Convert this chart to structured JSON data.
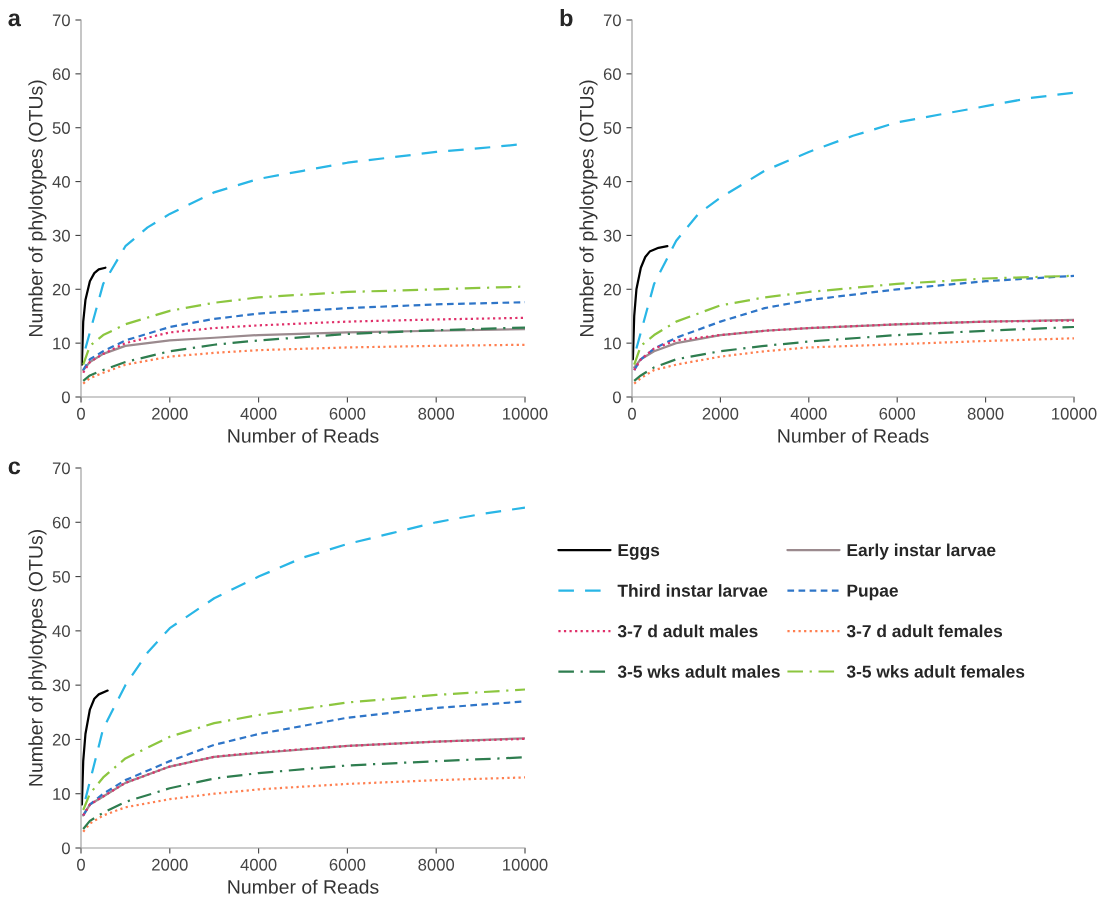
{
  "chart_data": [
    {
      "type": "line",
      "title": "a",
      "xlabel": "Number of Reads",
      "ylabel": "Number of phylotypes (OTUs)",
      "xlim": [
        0,
        10000
      ],
      "xticks": [
        0,
        2000,
        4000,
        6000,
        8000,
        10000
      ],
      "ylim": [
        0,
        70
      ],
      "yticks": [
        0,
        10,
        20,
        30,
        40,
        50,
        60,
        70
      ],
      "grid": false,
      "legend": false,
      "series": [
        {
          "color": "#000000",
          "line_style": "solid",
          "x": [
            20,
            50,
            100,
            200,
            300,
            400,
            550
          ],
          "values": [
            6,
            14,
            18,
            21.5,
            23,
            23.7,
            24
          ]
        },
        {
          "color": "#9b8a8e",
          "line_style": "solid",
          "x": [
            50,
            200,
            500,
            1000,
            2000,
            3000,
            4000,
            6000,
            8000,
            10000
          ],
          "values": [
            5,
            6.5,
            8,
            9.5,
            10.5,
            11,
            11.5,
            12,
            12.3,
            12.6
          ]
        },
        {
          "color": "#29b6e6",
          "line_style": "longdash",
          "x": [
            100,
            500,
            1000,
            1500,
            2000,
            3000,
            4000,
            5000,
            6000,
            7000,
            8000,
            9000,
            10000
          ],
          "values": [
            9,
            21,
            28,
            31.5,
            34,
            38,
            40.5,
            42,
            43.5,
            44.5,
            45.5,
            46.2,
            47
          ]
        },
        {
          "color": "#2e75c8",
          "line_style": "dashed",
          "x": [
            50,
            200,
            500,
            1000,
            2000,
            3000,
            4000,
            6000,
            8000,
            10000
          ],
          "values": [
            5,
            7,
            8.5,
            10.5,
            13,
            14.5,
            15.5,
            16.5,
            17.2,
            17.6
          ]
        },
        {
          "color": "#e0306a",
          "line_style": "dotted",
          "x": [
            50,
            200,
            500,
            1000,
            2000,
            3000,
            4000,
            6000,
            8000,
            10000
          ],
          "values": [
            4.5,
            6.5,
            8,
            10,
            12,
            12.8,
            13.3,
            14,
            14.4,
            14.7
          ]
        },
        {
          "color": "#ff7f50",
          "line_style": "dotted",
          "x": [
            50,
            200,
            500,
            1000,
            2000,
            3000,
            4000,
            6000,
            8000,
            10000
          ],
          "values": [
            2.5,
            3.5,
            4.5,
            6,
            7.5,
            8.2,
            8.7,
            9.2,
            9.5,
            9.7
          ]
        },
        {
          "color": "#2e7d4f",
          "line_style": "dashdot",
          "x": [
            50,
            200,
            500,
            1000,
            2000,
            3000,
            4000,
            6000,
            8000,
            10000
          ],
          "values": [
            3,
            4,
            5,
            6.5,
            8.5,
            9.7,
            10.5,
            11.7,
            12.4,
            12.9
          ]
        },
        {
          "color": "#8cc63f",
          "line_style": "dashdot",
          "x": [
            50,
            200,
            500,
            1000,
            2000,
            3000,
            4000,
            6000,
            8000,
            10000
          ],
          "values": [
            6,
            9.5,
            11.5,
            13.5,
            16,
            17.5,
            18.5,
            19.5,
            20,
            20.5
          ]
        }
      ]
    },
    {
      "type": "line",
      "title": "b",
      "xlabel": "Number of Reads",
      "ylabel": "Number of phylotypes (OTUs)",
      "xlim": [
        0,
        10000
      ],
      "xticks": [
        0,
        2000,
        4000,
        6000,
        8000,
        10000
      ],
      "ylim": [
        0,
        70
      ],
      "yticks": [
        0,
        10,
        20,
        30,
        40,
        50,
        60,
        70
      ],
      "grid": false,
      "legend": false,
      "series": [
        {
          "color": "#000000",
          "line_style": "solid",
          "x": [
            20,
            50,
            100,
            200,
            300,
            400,
            600,
            800
          ],
          "values": [
            7,
            15,
            20,
            24,
            26,
            27,
            27.7,
            28
          ]
        },
        {
          "color": "#9b8a8e",
          "line_style": "solid",
          "x": [
            50,
            200,
            500,
            1000,
            2000,
            3000,
            4000,
            6000,
            8000,
            10000
          ],
          "values": [
            5.5,
            7,
            8.5,
            10,
            11.5,
            12.3,
            12.8,
            13.5,
            14,
            14.3
          ]
        },
        {
          "color": "#29b6e6",
          "line_style": "longdash",
          "x": [
            100,
            500,
            1000,
            1500,
            2000,
            3000,
            4000,
            5000,
            6000,
            7000,
            8000,
            9000,
            10000
          ],
          "values": [
            9,
            21,
            29,
            34,
            37,
            42,
            45.5,
            48.5,
            51,
            52.5,
            54,
            55.5,
            56.5
          ]
        },
        {
          "color": "#2e75c8",
          "line_style": "dashed",
          "x": [
            50,
            200,
            500,
            1000,
            2000,
            3000,
            4000,
            6000,
            8000,
            10000
          ],
          "values": [
            5,
            7,
            9,
            11,
            14,
            16.5,
            18,
            20,
            21.5,
            22.5
          ]
        },
        {
          "color": "#e0306a",
          "line_style": "dotted",
          "x": [
            50,
            200,
            500,
            1000,
            2000,
            3000,
            4000,
            6000,
            8000,
            10000
          ],
          "values": [
            5,
            7,
            9,
            10.5,
            11.5,
            12.3,
            12.8,
            13.5,
            14,
            14.2
          ]
        },
        {
          "color": "#ff7f50",
          "line_style": "dotted",
          "x": [
            50,
            200,
            500,
            1000,
            2000,
            3000,
            4000,
            6000,
            8000,
            10000
          ],
          "values": [
            2.5,
            3.5,
            5,
            6,
            7.5,
            8.5,
            9.2,
            9.8,
            10.4,
            10.9
          ]
        },
        {
          "color": "#2e7d4f",
          "line_style": "dashdot",
          "x": [
            50,
            200,
            500,
            1000,
            2000,
            3000,
            4000,
            6000,
            8000,
            10000
          ],
          "values": [
            3,
            4,
            5.5,
            7,
            8.5,
            9.5,
            10.3,
            11.5,
            12.3,
            13
          ]
        },
        {
          "color": "#8cc63f",
          "line_style": "dashdot",
          "x": [
            50,
            200,
            500,
            1000,
            2000,
            3000,
            4000,
            6000,
            8000,
            10000
          ],
          "values": [
            6,
            9.5,
            11.5,
            14,
            17,
            18.5,
            19.5,
            21,
            22,
            22.5
          ]
        }
      ]
    },
    {
      "type": "line",
      "title": "c",
      "xlabel": "Number of Reads",
      "ylabel": "Number of phylotypes (OTUs)",
      "xlim": [
        0,
        10000
      ],
      "xticks": [
        0,
        2000,
        4000,
        6000,
        8000,
        10000
      ],
      "ylim": [
        0,
        70
      ],
      "yticks": [
        0,
        10,
        20,
        30,
        40,
        50,
        60,
        70
      ],
      "grid": false,
      "legend": "right",
      "series": [
        {
          "name": "Eggs",
          "color": "#000000",
          "line_style": "solid",
          "x": [
            20,
            50,
            100,
            200,
            300,
            400,
            600
          ],
          "values": [
            8,
            16,
            21,
            25.5,
            27.5,
            28.3,
            29
          ]
        },
        {
          "name": "Early instar larvae",
          "color": "#9b8a8e",
          "line_style": "solid",
          "x": [
            50,
            200,
            500,
            1000,
            2000,
            3000,
            4000,
            6000,
            8000,
            10000
          ],
          "values": [
            6,
            8,
            9.5,
            12,
            15,
            16.8,
            17.5,
            18.8,
            19.6,
            20.2
          ]
        },
        {
          "name": "Third instar larvae",
          "color": "#29b6e6",
          "line_style": "longdash",
          "x": [
            100,
            500,
            1000,
            1500,
            2000,
            3000,
            4000,
            5000,
            6000,
            7000,
            8000,
            9000,
            10000
          ],
          "values": [
            9,
            22,
            30,
            36,
            40.5,
            46,
            50,
            53.5,
            56,
            58,
            60,
            61.5,
            62.7
          ]
        },
        {
          "name": "Pupae",
          "color": "#2e75c8",
          "line_style": "dashed",
          "x": [
            50,
            200,
            500,
            1000,
            2000,
            3000,
            4000,
            6000,
            8000,
            10000
          ],
          "values": [
            6,
            8,
            10,
            12.5,
            16,
            19,
            21,
            24,
            25.8,
            27
          ]
        },
        {
          "name": "3-7 d adult males",
          "color": "#e0306a",
          "line_style": "dotted",
          "x": [
            50,
            200,
            500,
            1000,
            2000,
            3000,
            4000,
            6000,
            8000,
            10000
          ],
          "values": [
            6,
            8,
            9.5,
            12,
            15,
            16.8,
            17.6,
            18.8,
            19.6,
            20.1
          ]
        },
        {
          "name": "3-7 d adult females",
          "color": "#ff7f50",
          "line_style": "dotted",
          "x": [
            50,
            200,
            500,
            1000,
            2000,
            3000,
            4000,
            6000,
            8000,
            10000
          ],
          "values": [
            3,
            4.5,
            6,
            7.5,
            9,
            10,
            10.8,
            11.8,
            12.5,
            13
          ]
        },
        {
          "name": "3-5 wks adult males",
          "color": "#2e7d4f",
          "line_style": "dashdot",
          "x": [
            50,
            200,
            500,
            1000,
            2000,
            3000,
            4000,
            6000,
            8000,
            10000
          ],
          "values": [
            3.5,
            5,
            6.5,
            8.5,
            11,
            12.8,
            13.8,
            15.2,
            16,
            16.7
          ]
        },
        {
          "name": "3-5 wks adult females",
          "color": "#8cc63f",
          "line_style": "dashdot",
          "x": [
            50,
            200,
            500,
            1000,
            2000,
            3000,
            4000,
            6000,
            8000,
            10000
          ],
          "values": [
            7,
            10,
            13,
            16.5,
            20.5,
            23,
            24.5,
            26.8,
            28.2,
            29.2
          ]
        }
      ]
    }
  ]
}
